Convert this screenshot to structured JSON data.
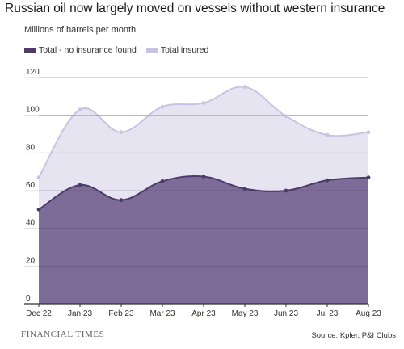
{
  "header": {
    "title": "Russian oil now largely moved on vessels without western insurance",
    "subtitle": "Millions of barrels per month"
  },
  "legend": {
    "items": [
      {
        "label": "Total - no insurance found",
        "color": "#4e3a6b"
      },
      {
        "label": "Total insured",
        "color": "#c9c3e3"
      }
    ]
  },
  "footer": {
    "brand": "FINANCIAL TIMES",
    "source": "Source: Kpler, P&I Clubs"
  },
  "chart_data": {
    "type": "area",
    "title": "Russian oil now largely moved on vessels without western insurance",
    "ylabel": "Millions of barrels per month",
    "categories": [
      "Dec 22",
      "Jan 23",
      "Feb 23",
      "Mar 23",
      "Apr 23",
      "May 23",
      "Jun 23",
      "Jul 23",
      "Aug 23"
    ],
    "ylim": [
      0,
      120
    ],
    "yticks": [
      0,
      20,
      40,
      60,
      80,
      100,
      120
    ],
    "series": [
      {
        "name": "Total - no insurance found",
        "values": [
          50,
          63,
          55,
          65,
          67.5,
          61,
          60,
          65.5,
          67
        ],
        "color": "#4e3a6b",
        "fill": "#7e6c98"
      },
      {
        "name": "Total insured",
        "values": [
          67,
          103,
          91,
          104.5,
          106.5,
          115,
          99.5,
          89.5,
          91
        ],
        "color": "#c9c3e3",
        "fill": "#e6e4f1"
      }
    ],
    "grid": true,
    "legend_position": "top-left"
  }
}
